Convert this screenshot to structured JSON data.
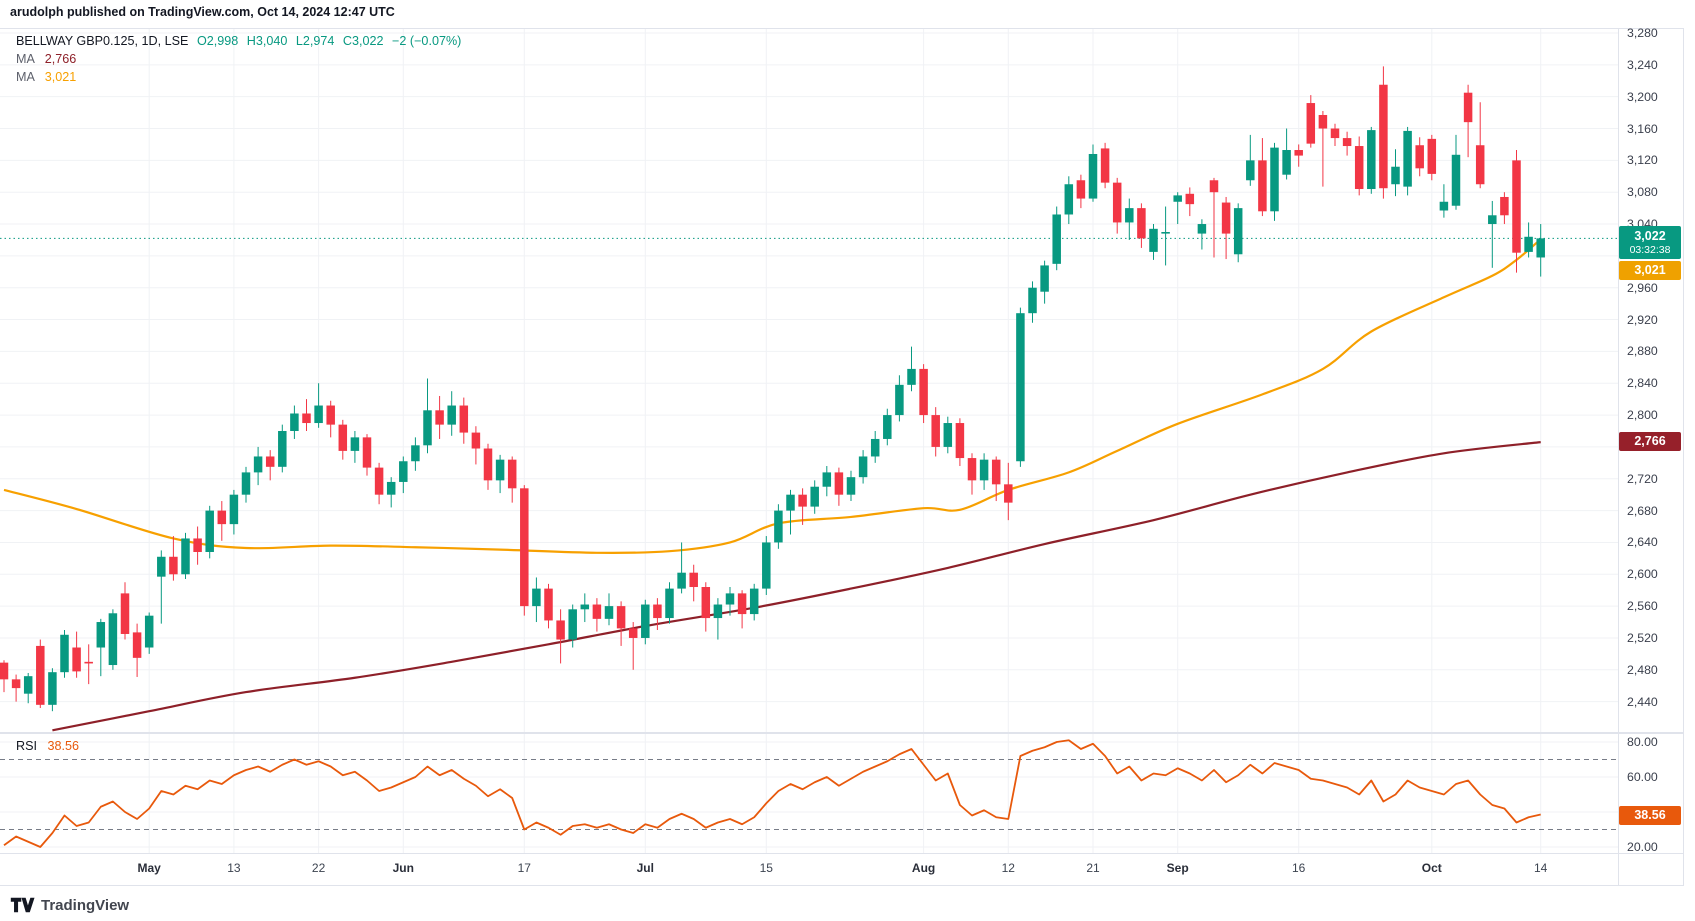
{
  "page": {
    "byline": "arudolph published on TradingView.com, Oct 14, 2024 12:47 UTC",
    "brand": "TradingView"
  },
  "legend": {
    "symbol": "BELLWAY GBP0.125, 1D, LSE",
    "open": "O2,998",
    "high": "H3,040",
    "low": "L2,974",
    "close": "C3,022",
    "change": "−2 (−0.07%)",
    "ma_rows": [
      {
        "label": "MA",
        "value": "2,766"
      },
      {
        "label": "MA",
        "value": "3,021"
      }
    ]
  },
  "rsi_legend": {
    "label": "RSI",
    "value": "38.56"
  },
  "badges": {
    "last_price": "3,022",
    "countdown": "03:32:38",
    "ma_fast": "3,021",
    "ma_slow": "2,766",
    "rsi": "38.56"
  },
  "colors": {
    "up": "#089981",
    "down": "#F23645",
    "ma_fast": "#F7A000",
    "ma_slow": "#8E2029",
    "rsi": "#E8590C",
    "grid": "#F0F2F5",
    "border": "#E0E3EB",
    "band": "#777C87",
    "badge_ma_fast": "#EFA100",
    "badge_ma_slow": "#96202A",
    "badge_rsi": "#E8590C",
    "badge_last": "#089981"
  },
  "chart_data": {
    "type": "candlestick",
    "title": "BELLWAY GBP0.125, 1D, LSE",
    "interval": "1D",
    "currency": "GBX",
    "last_bar": {
      "open": 2998,
      "high": 3040,
      "low": 2974,
      "close": 3022,
      "change": -2,
      "change_pct": "-0.07%"
    },
    "last_price_line": 3022,
    "price_axis": {
      "tick_step": 40,
      "min_label": 2440,
      "max_label": 3280,
      "visible_labels": [
        3280,
        3240,
        3200,
        3160,
        3120,
        3080,
        3040,
        2960,
        2920,
        2880,
        2840,
        2800,
        2720,
        2680,
        2640,
        2600,
        2560,
        2520,
        2480,
        2440
      ]
    },
    "time_axis": [
      {
        "label": "May",
        "i": 12,
        "major": true
      },
      {
        "label": "13",
        "i": 19,
        "major": false
      },
      {
        "label": "22",
        "i": 26,
        "major": false
      },
      {
        "label": "Jun",
        "i": 33,
        "major": true
      },
      {
        "label": "17",
        "i": 43,
        "major": false
      },
      {
        "label": "Jul",
        "i": 53,
        "major": true
      },
      {
        "label": "15",
        "i": 63,
        "major": false
      },
      {
        "label": "Aug",
        "i": 76,
        "major": true
      },
      {
        "label": "12",
        "i": 83,
        "major": false
      },
      {
        "label": "21",
        "i": 90,
        "major": false
      },
      {
        "label": "Sep",
        "i": 97,
        "major": true
      },
      {
        "label": "16",
        "i": 107,
        "major": false
      },
      {
        "label": "Oct",
        "i": 118,
        "major": true
      },
      {
        "label": "14",
        "i": 127,
        "major": false
      }
    ],
    "candles": [
      [
        2489,
        2492,
        2452,
        2468
      ],
      [
        2468,
        2474,
        2440,
        2457
      ],
      [
        2450,
        2476,
        2438,
        2472
      ],
      [
        2510,
        2518,
        2432,
        2436
      ],
      [
        2436,
        2482,
        2428,
        2477
      ],
      [
        2477,
        2530,
        2470,
        2524
      ],
      [
        2508,
        2528,
        2470,
        2478
      ],
      [
        2490,
        2512,
        2462,
        2488
      ],
      [
        2508,
        2544,
        2472,
        2540
      ],
      [
        2486,
        2556,
        2480,
        2551
      ],
      [
        2576,
        2590,
        2518,
        2525
      ],
      [
        2527,
        2538,
        2471,
        2495
      ],
      [
        2508,
        2552,
        2500,
        2548
      ],
      [
        2597,
        2630,
        2538,
        2622
      ],
      [
        2622,
        2648,
        2592,
        2600
      ],
      [
        2600,
        2652,
        2594,
        2645
      ],
      [
        2645,
        2660,
        2612,
        2628
      ],
      [
        2628,
        2686,
        2620,
        2680
      ],
      [
        2680,
        2692,
        2642,
        2663
      ],
      [
        2663,
        2706,
        2650,
        2700
      ],
      [
        2700,
        2735,
        2690,
        2728
      ],
      [
        2728,
        2760,
        2712,
        2748
      ],
      [
        2748,
        2756,
        2718,
        2735
      ],
      [
        2735,
        2788,
        2728,
        2780
      ],
      [
        2780,
        2812,
        2770,
        2802
      ],
      [
        2802,
        2820,
        2780,
        2790
      ],
      [
        2790,
        2840,
        2784,
        2812
      ],
      [
        2812,
        2818,
        2772,
        2788
      ],
      [
        2788,
        2794,
        2744,
        2755
      ],
      [
        2755,
        2780,
        2740,
        2772
      ],
      [
        2772,
        2776,
        2724,
        2734
      ],
      [
        2734,
        2740,
        2688,
        2700
      ],
      [
        2700,
        2722,
        2684,
        2716
      ],
      [
        2716,
        2748,
        2702,
        2742
      ],
      [
        2742,
        2772,
        2730,
        2762
      ],
      [
        2762,
        2846,
        2752,
        2806
      ],
      [
        2806,
        2824,
        2770,
        2788
      ],
      [
        2788,
        2830,
        2774,
        2812
      ],
      [
        2812,
        2822,
        2764,
        2778
      ],
      [
        2778,
        2786,
        2738,
        2758
      ],
      [
        2758,
        2764,
        2706,
        2718
      ],
      [
        2718,
        2750,
        2702,
        2744
      ],
      [
        2744,
        2748,
        2690,
        2708
      ],
      [
        2708,
        2712,
        2548,
        2560
      ],
      [
        2560,
        2596,
        2540,
        2582
      ],
      [
        2582,
        2588,
        2532,
        2542
      ],
      [
        2542,
        2556,
        2488,
        2518
      ],
      [
        2518,
        2562,
        2508,
        2556
      ],
      [
        2556,
        2576,
        2540,
        2562
      ],
      [
        2562,
        2570,
        2528,
        2544
      ],
      [
        2544,
        2576,
        2536,
        2560
      ],
      [
        2560,
        2566,
        2510,
        2532
      ],
      [
        2532,
        2540,
        2480,
        2520
      ],
      [
        2520,
        2568,
        2512,
        2562
      ],
      [
        2562,
        2570,
        2530,
        2545
      ],
      [
        2545,
        2590,
        2538,
        2582
      ],
      [
        2582,
        2640,
        2576,
        2602
      ],
      [
        2602,
        2612,
        2566,
        2584
      ],
      [
        2584,
        2590,
        2528,
        2545
      ],
      [
        2545,
        2570,
        2518,
        2562
      ],
      [
        2562,
        2584,
        2548,
        2576
      ],
      [
        2576,
        2580,
        2532,
        2550
      ],
      [
        2550,
        2588,
        2542,
        2582
      ],
      [
        2582,
        2648,
        2574,
        2640
      ],
      [
        2640,
        2688,
        2632,
        2680
      ],
      [
        2680,
        2706,
        2650,
        2700
      ],
      [
        2700,
        2708,
        2662,
        2685
      ],
      [
        2685,
        2718,
        2676,
        2710
      ],
      [
        2710,
        2736,
        2698,
        2728
      ],
      [
        2728,
        2734,
        2686,
        2700
      ],
      [
        2700,
        2730,
        2692,
        2722
      ],
      [
        2722,
        2756,
        2714,
        2748
      ],
      [
        2748,
        2780,
        2740,
        2770
      ],
      [
        2770,
        2808,
        2762,
        2800
      ],
      [
        2800,
        2850,
        2792,
        2838
      ],
      [
        2838,
        2886,
        2830,
        2858
      ],
      [
        2858,
        2864,
        2790,
        2800
      ],
      [
        2800,
        2810,
        2748,
        2760
      ],
      [
        2760,
        2798,
        2752,
        2790
      ],
      [
        2790,
        2796,
        2736,
        2746
      ],
      [
        2746,
        2752,
        2700,
        2718
      ],
      [
        2718,
        2752,
        2706,
        2744
      ],
      [
        2744,
        2748,
        2692,
        2713
      ],
      [
        2713,
        2740,
        2668,
        2690
      ],
      [
        2742,
        2935,
        2735,
        2928
      ],
      [
        2928,
        2968,
        2916,
        2960
      ],
      [
        2955,
        2994,
        2940,
        2988
      ],
      [
        2990,
        3062,
        2982,
        3052
      ],
      [
        3052,
        3100,
        3040,
        3090
      ],
      [
        3095,
        3102,
        3060,
        3072
      ],
      [
        3072,
        3140,
        3068,
        3128
      ],
      [
        3135,
        3142,
        3085,
        3092
      ],
      [
        3092,
        3098,
        3028,
        3042
      ],
      [
        3042,
        3072,
        3020,
        3060
      ],
      [
        3060,
        3066,
        3010,
        3022
      ],
      [
        3005,
        3040,
        2995,
        3034
      ],
      [
        3028,
        3062,
        2988,
        3030
      ],
      [
        3068,
        3080,
        3040,
        3076
      ],
      [
        3078,
        3086,
        3050,
        3065
      ],
      [
        3028,
        3046,
        3008,
        3040
      ],
      [
        3095,
        3098,
        2998,
        3080
      ],
      [
        3067,
        3074,
        2996,
        3028
      ],
      [
        3002,
        3066,
        2992,
        3060
      ],
      [
        3095,
        3152,
        3088,
        3120
      ],
      [
        3120,
        3148,
        3050,
        3056
      ],
      [
        3056,
        3142,
        3044,
        3136
      ],
      [
        3102,
        3160,
        3096,
        3133
      ],
      [
        3133,
        3140,
        3112,
        3126
      ],
      [
        3192,
        3202,
        3136,
        3141
      ],
      [
        3177,
        3182,
        3087,
        3160
      ],
      [
        3160,
        3166,
        3138,
        3148
      ],
      [
        3148,
        3156,
        3126,
        3138
      ],
      [
        3138,
        3150,
        3076,
        3084
      ],
      [
        3084,
        3162,
        3078,
        3158
      ],
      [
        3215,
        3238,
        3072,
        3085
      ],
      [
        3090,
        3134,
        3075,
        3112
      ],
      [
        3087,
        3162,
        3076,
        3157
      ],
      [
        3139,
        3149,
        3100,
        3110
      ],
      [
        3147,
        3152,
        3095,
        3103
      ],
      [
        3057,
        3090,
        3048,
        3068
      ],
      [
        3063,
        3152,
        3058,
        3127
      ],
      [
        3205,
        3215,
        3124,
        3168
      ],
      [
        3139,
        3193,
        3085,
        3090
      ],
      [
        3040,
        3069,
        2985,
        3051
      ],
      [
        3074,
        3080,
        3040,
        3051
      ],
      [
        3120,
        3133,
        2979,
        3004
      ],
      [
        3005,
        3042,
        2998,
        3024
      ],
      [
        2998,
        3040,
        2974,
        3022
      ]
    ],
    "overlays": [
      {
        "name": "ma_slow",
        "value": 2766,
        "points": [
          [
            4,
            2404
          ],
          [
            12,
            2428
          ],
          [
            20,
            2452
          ],
          [
            29,
            2470
          ],
          [
            37,
            2490
          ],
          [
            45,
            2512
          ],
          [
            53,
            2535
          ],
          [
            62,
            2558
          ],
          [
            70,
            2582
          ],
          [
            78,
            2608
          ],
          [
            86,
            2638
          ],
          [
            95,
            2668
          ],
          [
            103,
            2700
          ],
          [
            111,
            2728
          ],
          [
            119,
            2752
          ],
          [
            127,
            2766
          ]
        ]
      },
      {
        "name": "ma_fast",
        "value": 3021,
        "points": [
          [
            0,
            2706
          ],
          [
            6,
            2682
          ],
          [
            14,
            2645
          ],
          [
            20,
            2633
          ],
          [
            27,
            2636
          ],
          [
            34,
            2634
          ],
          [
            41,
            2631
          ],
          [
            49,
            2627
          ],
          [
            55,
            2629
          ],
          [
            60,
            2640
          ],
          [
            64,
            2664
          ],
          [
            70,
            2672
          ],
          [
            76,
            2683
          ],
          [
            79,
            2681
          ],
          [
            83,
            2706
          ],
          [
            88,
            2728
          ],
          [
            92,
            2755
          ],
          [
            97,
            2789
          ],
          [
            104,
            2826
          ],
          [
            109,
            2858
          ],
          [
            113,
            2905
          ],
          [
            119,
            2948
          ],
          [
            123,
            2975
          ],
          [
            125,
            2995
          ],
          [
            127,
            3021
          ]
        ]
      }
    ],
    "rsi": {
      "last": 38.56,
      "bands": [
        70,
        30
      ],
      "axis_labels": [
        80,
        60,
        20
      ],
      "values": [
        21,
        26,
        23,
        20,
        28,
        38,
        32,
        34,
        43,
        46,
        40,
        36,
        42,
        52,
        50,
        55,
        53,
        58,
        56,
        61,
        64,
        66,
        63,
        67,
        70,
        67,
        69,
        66,
        61,
        63,
        58,
        52,
        54,
        57,
        60,
        66,
        61,
        64,
        59,
        55,
        49,
        53,
        48,
        30,
        34,
        31,
        27,
        32,
        33,
        31,
        33,
        30,
        28,
        33,
        31,
        36,
        39,
        36,
        31,
        34,
        36,
        33,
        37,
        45,
        52,
        56,
        53,
        57,
        60,
        55,
        59,
        63,
        66,
        69,
        73,
        76,
        67,
        58,
        62,
        44,
        38,
        41,
        37,
        36,
        72,
        75,
        77,
        80,
        81,
        76,
        79,
        72,
        62,
        66,
        58,
        62,
        61,
        65,
        62,
        58,
        64,
        57,
        61,
        67,
        62,
        68,
        66,
        64,
        59,
        58,
        56,
        54,
        50,
        58,
        46,
        50,
        58,
        54,
        52,
        50,
        56,
        58,
        50,
        44,
        42,
        34,
        37,
        38.56
      ]
    }
  }
}
